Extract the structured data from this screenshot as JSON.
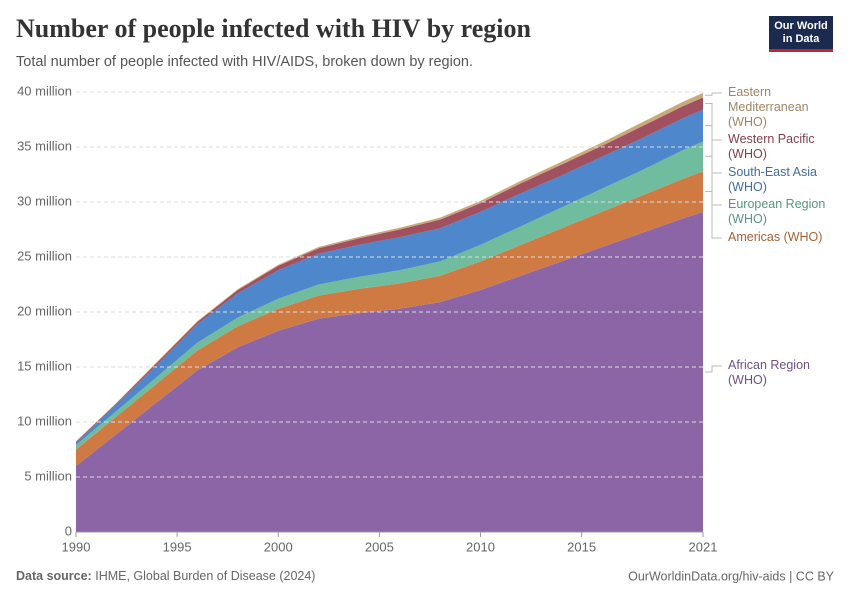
{
  "chart_data": {
    "type": "stacked-area",
    "title": "Number of people infected with HIV by region",
    "subtitle": "Total number of people infected with HIV/AIDS, broken down by region.",
    "logo": "Our World in Data",
    "source_label": "Data source:",
    "source": "IHME, Global Burden of Disease (2024)",
    "url": "OurWorldinData.org/hiv-aids | CC BY",
    "x": [
      1990,
      1992,
      1994,
      1996,
      1998,
      2000,
      2002,
      2004,
      2006,
      2008,
      2010,
      2012,
      2014,
      2016,
      2018,
      2020,
      2021
    ],
    "xlim": [
      1990,
      2021
    ],
    "xticks": [
      1990,
      1995,
      2000,
      2005,
      2010,
      2015,
      2021
    ],
    "ylim": [
      0,
      40000000
    ],
    "yticks": [
      0,
      {
        "value": 5000000,
        "label": "5 million"
      },
      {
        "value": 10000000,
        "label": "10 million"
      },
      {
        "value": 15000000,
        "label": "15 million"
      },
      {
        "value": 20000000,
        "label": "20 million"
      },
      {
        "value": 25000000,
        "label": "25 million"
      },
      {
        "value": 30000000,
        "label": "30 million"
      },
      {
        "value": 35000000,
        "label": "35 million"
      },
      {
        "value": 40000000,
        "label": "40 million"
      }
    ],
    "grid": true,
    "series": [
      {
        "name": "African Region (WHO)",
        "color": "#8c65a6",
        "values": [
          6000000,
          8900000,
          11800000,
          14700000,
          16800000,
          18300000,
          19400000,
          19900000,
          20300000,
          20900000,
          22000000,
          23300000,
          24600000,
          25900000,
          27200000,
          28500000,
          29100000
        ]
      },
      {
        "name": "Americas (WHO)",
        "color": "#cf7a42",
        "values": [
          1500000,
          1600000,
          1700000,
          1800000,
          1900000,
          2000000,
          2100000,
          2200000,
          2300000,
          2400000,
          2600000,
          2800000,
          3000000,
          3200000,
          3400000,
          3600000,
          3700000
        ]
      },
      {
        "name": "European Region (WHO)",
        "color": "#6fbc9f",
        "values": [
          400000,
          500000,
          600000,
          700000,
          800000,
          900000,
          1000000,
          1100000,
          1200000,
          1300000,
          1500000,
          1700000,
          1900000,
          2100000,
          2300000,
          2600000,
          2700000
        ]
      },
      {
        "name": "South-East Asia (WHO)",
        "color": "#4f87cc",
        "values": [
          200000,
          600000,
          1100000,
          1700000,
          2200000,
          2600000,
          2800000,
          2900000,
          3000000,
          3000000,
          3000000,
          3000000,
          2900000,
          2900000,
          2900000,
          2900000,
          2900000
        ]
      },
      {
        "name": "Western Pacific (WHO)",
        "color": "#a1505f",
        "values": [
          100000,
          100000,
          200000,
          200000,
          300000,
          400000,
          500000,
          600000,
          700000,
          800000,
          800000,
          900000,
          1000000,
          1000000,
          1100000,
          1100000,
          1100000
        ]
      },
      {
        "name": "Eastern Mediterranean (WHO)",
        "color": "#c9a87b",
        "values": [
          50000,
          50000,
          60000,
          70000,
          80000,
          100000,
          120000,
          140000,
          160000,
          180000,
          200000,
          230000,
          260000,
          300000,
          350000,
          400000,
          420000
        ]
      }
    ]
  }
}
